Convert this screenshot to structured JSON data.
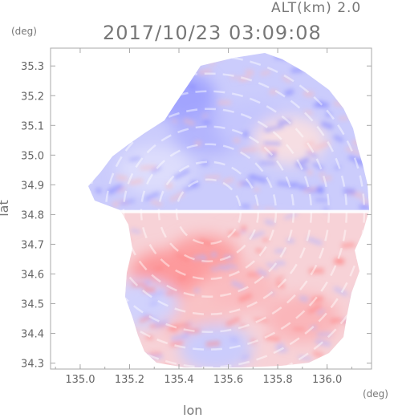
{
  "header": {
    "altitude_label": "ALT(km) 2.0",
    "timestamp": "2017/10/23 03:09:08"
  },
  "chart_data": {
    "type": "heatmap",
    "title": "2017/10/23 03:09:08",
    "subtitle": "ALT(km) 2.0",
    "xlabel": "lon",
    "ylabel": "lat",
    "x_unit": "(deg)",
    "y_unit": "(deg)",
    "xlim": [
      134.88,
      136.18
    ],
    "ylim": [
      34.28,
      35.36
    ],
    "x_ticks": [
      135.0,
      135.2,
      135.4,
      135.6,
      135.8,
      136.0
    ],
    "x_tick_labels": [
      "135.0",
      "135.2",
      "135.4",
      "135.6",
      "135.8",
      "136.0"
    ],
    "y_ticks": [
      34.3,
      34.4,
      34.5,
      34.6,
      34.7,
      34.8,
      34.9,
      35.0,
      35.1,
      35.2,
      35.3
    ],
    "y_tick_labels": [
      "34.3",
      "34.4",
      "34.5",
      "34.6",
      "34.7",
      "34.8",
      "34.9",
      "35.0",
      "35.1",
      "35.2",
      "35.3"
    ],
    "radar_center": {
      "lon": 135.52,
      "lat": 34.81
    },
    "colors": {
      "toward": "#7f82ff",
      "away": "#ff8484",
      "neutral": "#f4f4fb",
      "frame": "#a8a8a8"
    },
    "field_regions": [
      {
        "lon": 135.52,
        "lat": 35.08,
        "value": -0.55
      },
      {
        "lon": 135.4,
        "lat": 35.2,
        "value": -0.7
      },
      {
        "lon": 135.7,
        "lat": 35.1,
        "value": -0.4
      },
      {
        "lon": 135.45,
        "lat": 34.92,
        "value": -0.35
      },
      {
        "lon": 135.3,
        "lat": 34.95,
        "value": -0.2
      },
      {
        "lon": 135.85,
        "lat": 35.05,
        "value": 0.2
      },
      {
        "lon": 135.5,
        "lat": 34.65,
        "value": 0.75
      },
      {
        "lon": 135.35,
        "lat": 34.6,
        "value": 0.8
      },
      {
        "lon": 135.65,
        "lat": 34.55,
        "value": 0.5
      },
      {
        "lon": 135.8,
        "lat": 34.7,
        "value": 0.3
      },
      {
        "lon": 135.45,
        "lat": 34.45,
        "value": 0.45
      },
      {
        "lon": 135.25,
        "lat": 34.5,
        "value": -0.3
      },
      {
        "lon": 135.9,
        "lat": 34.45,
        "value": 0.55
      },
      {
        "lon": 135.55,
        "lat": 34.35,
        "value": -0.35
      }
    ]
  }
}
